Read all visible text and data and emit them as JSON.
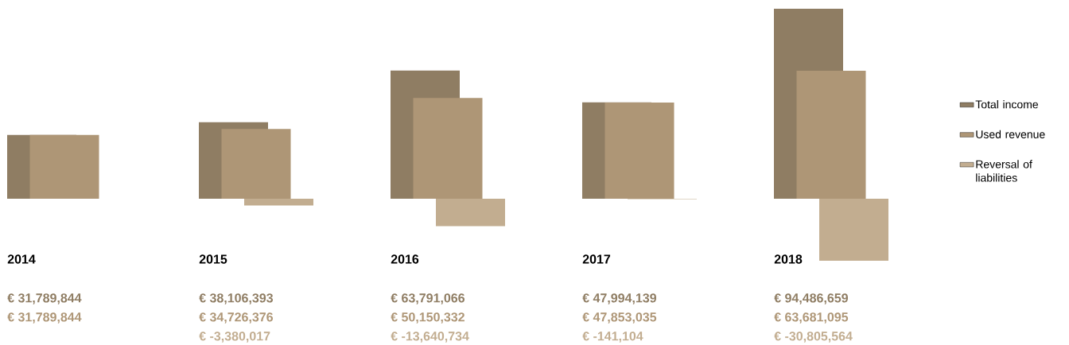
{
  "chart_data": {
    "type": "bar",
    "categories": [
      "2014",
      "2015",
      "2016",
      "2017",
      "2018"
    ],
    "series": [
      {
        "name": "Total income",
        "color": "#8f7d63",
        "values": [
          31789844,
          38106393,
          63791066,
          47994139,
          94486659
        ],
        "value_labels": [
          "€ 31,789,844",
          "€ 38,106,393",
          "€ 63,791,066",
          "€ 47,994,139",
          "€ 94,486,659"
        ]
      },
      {
        "name": "Used revenue",
        "color": "#ae9676",
        "values": [
          31789844,
          34726376,
          50150332,
          47853035,
          63681095
        ],
        "value_labels": [
          "€ 31,789,844",
          "€ 34,726,376",
          "€ 50,150,332",
          "€ 47,853,035",
          "€ 63,681,095"
        ]
      },
      {
        "name": "Reversal of liabilities",
        "color": "#c2ad90",
        "values": [
          null,
          -3380017,
          -13640734,
          -141104,
          -30805564
        ],
        "value_labels": [
          null,
          "€ -3,380,017",
          "€ -13,640,734",
          "€ -141,104",
          "€ -30,805,564"
        ]
      }
    ],
    "legend": "right"
  }
}
